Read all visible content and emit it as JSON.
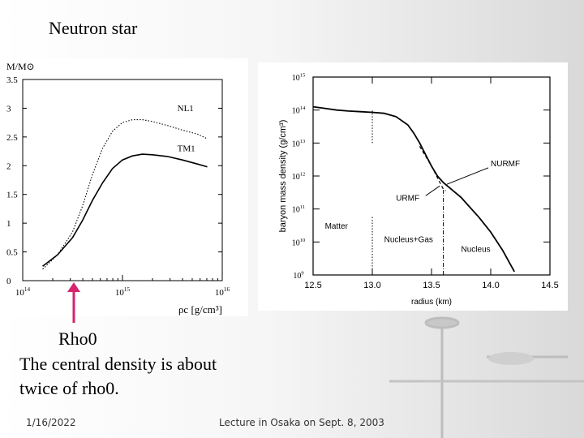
{
  "slide": {
    "title": "Neutron star",
    "caption_line1": "Rho0",
    "caption_line2": "The central density is about",
    "caption_line3": "twice of rho0.",
    "footer_date": "1/16/2022",
    "footer_text": "Lecture in Osaka on Sept. 8, 2003"
  },
  "chart_data": [
    {
      "type": "line",
      "title": "",
      "ylabel": "M/M⊙",
      "xlabel": "ρc [g/cm³]",
      "xscale": "log",
      "xlim_log10": [
        14,
        16
      ],
      "ylim": [
        0,
        3.5
      ],
      "x_ticks": [
        {
          "log10": 14,
          "base": "10",
          "exp": "14"
        },
        {
          "log10": 15,
          "base": "10",
          "exp": "15"
        },
        {
          "log10": 16,
          "base": "10",
          "exp": "16"
        }
      ],
      "y_ticks": [
        "0",
        "0.5",
        "1",
        "1.5",
        "2",
        "2.5",
        "3",
        "3.5"
      ],
      "series": [
        {
          "name": "NL1",
          "style": "dotted",
          "x_log10": [
            14.2,
            14.35,
            14.5,
            14.6,
            14.7,
            14.8,
            14.9,
            15.0,
            15.1,
            15.2,
            15.3,
            15.45,
            15.6,
            15.75,
            15.85
          ],
          "y": [
            0.2,
            0.45,
            0.85,
            1.3,
            1.85,
            2.3,
            2.6,
            2.75,
            2.8,
            2.8,
            2.77,
            2.7,
            2.62,
            2.55,
            2.47
          ]
        },
        {
          "name": "TM1",
          "style": "solid",
          "x_log10": [
            14.2,
            14.35,
            14.5,
            14.6,
            14.7,
            14.8,
            14.9,
            15.0,
            15.1,
            15.2,
            15.3,
            15.45,
            15.6,
            15.75,
            15.85
          ],
          "y": [
            0.25,
            0.45,
            0.75,
            1.05,
            1.4,
            1.7,
            1.95,
            2.1,
            2.17,
            2.2,
            2.19,
            2.16,
            2.1,
            2.03,
            1.98
          ]
        }
      ],
      "annotations": [
        {
          "text": "Rho0",
          "x_log10": 14.45,
          "kind": "arrow"
        }
      ]
    },
    {
      "type": "line",
      "title": "",
      "ylabel": "baryon mass density (g/cm³)",
      "xlabel": "radius (km)",
      "yscale": "log",
      "xlim": [
        12.5,
        14.5
      ],
      "ylim_log10": [
        9,
        15
      ],
      "x_ticks": [
        "12.5",
        "13.0",
        "13.5",
        "14.0",
        "14.5"
      ],
      "y_ticks": [
        {
          "log10": 9,
          "base": "10",
          "exp": "9"
        },
        {
          "log10": 10,
          "base": "10",
          "exp": "10"
        },
        {
          "log10": 11,
          "base": "10",
          "exp": "11"
        },
        {
          "log10": 12,
          "base": "10",
          "exp": "12"
        },
        {
          "log10": 13,
          "base": "10",
          "exp": "13"
        },
        {
          "log10": 14,
          "base": "10",
          "exp": "14"
        },
        {
          "log10": 15,
          "base": "10",
          "exp": "15"
        }
      ],
      "series": [
        {
          "name": "URMF",
          "style": "solid",
          "x": [
            12.5,
            12.6,
            12.7,
            12.8,
            12.9,
            13.0,
            13.1,
            13.2,
            13.3,
            13.35,
            13.4,
            13.45,
            13.5,
            13.55,
            13.6,
            13.65,
            13.7,
            13.75,
            13.8,
            13.9,
            14.0,
            14.1,
            14.2
          ],
          "y_log10": [
            14.1,
            14.05,
            14.0,
            13.97,
            13.95,
            13.93,
            13.9,
            13.8,
            13.55,
            13.3,
            13.0,
            12.65,
            12.3,
            12.0,
            11.8,
            11.65,
            11.5,
            11.35,
            11.15,
            10.75,
            10.3,
            9.75,
            9.1
          ]
        },
        {
          "name": "NURMF",
          "style": "dashed",
          "x": [
            13.4,
            13.45,
            13.5,
            13.55,
            13.6,
            13.62
          ],
          "y_log10": [
            12.9,
            12.6,
            12.3,
            11.95,
            11.6,
            11.55
          ]
        }
      ],
      "vlines": [
        {
          "x": 13.0,
          "from_log10": 13.0,
          "to_log10": 14.0,
          "style": "dotted"
        },
        {
          "x": 13.0,
          "from_log10": 9.0,
          "to_log10": 10.8,
          "style": "dotted"
        },
        {
          "x": 13.6,
          "from_log10": 9.0,
          "to_log10": 11.6,
          "style": "dash-dot"
        }
      ],
      "annotations": [
        {
          "text": "NURMF",
          "x": 14.0,
          "y_log10": 12.3
        },
        {
          "text": "URMF",
          "x": 13.2,
          "y_log10": 11.25
        },
        {
          "text": "Matter",
          "x": 12.6,
          "y_log10": 10.4
        },
        {
          "text": "Nucleus+Gas",
          "x": 13.1,
          "y_log10": 10.0
        },
        {
          "text": "Nucleus",
          "x": 13.75,
          "y_log10": 9.7
        }
      ]
    }
  ]
}
